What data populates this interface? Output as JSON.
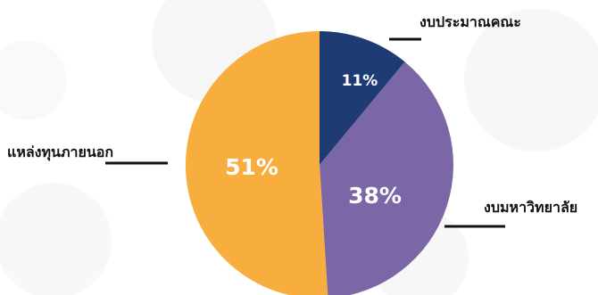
{
  "chart_data": {
    "type": "pie",
    "slices": [
      {
        "label": "งบประมาณคณะ",
        "value": 11,
        "value_label": "11%",
        "color": "#1f3b73"
      },
      {
        "label": "งบมหาวิทยาลัย",
        "value": 38,
        "value_label": "38%",
        "color": "#7b67a6"
      },
      {
        "label": "แหล่งทุนภายนอก",
        "value": 51,
        "value_label": "51%",
        "color": "#f8ae3e"
      }
    ],
    "start": "12 o'clock",
    "direction": "clockwise",
    "legend": "none (callout labels)"
  }
}
